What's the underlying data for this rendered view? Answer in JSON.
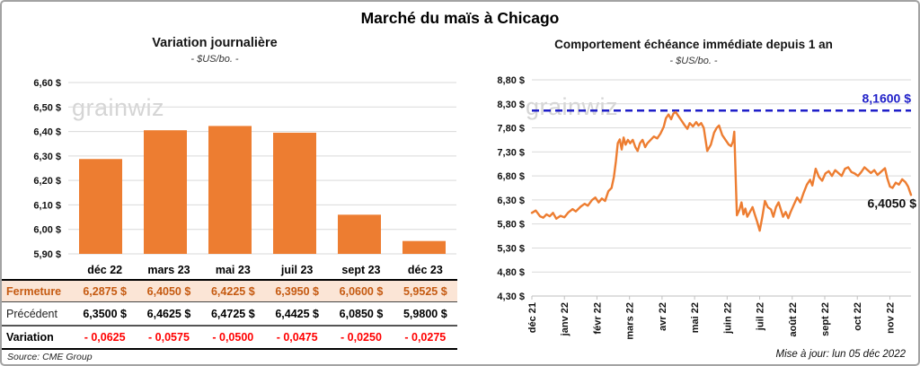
{
  "page": {
    "title": "Marché du maïs à Chicago",
    "watermark": "grainwiz",
    "source_note": "Source: CME Group",
    "update_note": "Mise à jour: lun 05 déc 2022"
  },
  "colors": {
    "bar_orange": "#ED7D31",
    "line_orange": "#ED7D31",
    "ref_blue": "#1F1FC8",
    "variation_red": "#FF0000",
    "fermeture_bg": "#FBE5D6",
    "fermeture_text": "#C55A11",
    "grid": "#D9D9D9",
    "axis": "#BFBFBF"
  },
  "chart_data": [
    {
      "type": "bar",
      "title": "Variation  journalière",
      "subtitle": "- $US/bo. -",
      "categories": [
        "déc 22",
        "mars 23",
        "mai 23",
        "juil 23",
        "sept 23",
        "déc 23"
      ],
      "values": [
        6.2875,
        6.405,
        6.4225,
        6.395,
        6.06,
        5.9525
      ],
      "ylim": [
        5.9,
        6.6
      ],
      "ytick_step": 0.1,
      "ytick_labels": [
        "6,60 $",
        "6,50 $",
        "6,40 $",
        "6,30 $",
        "6,20 $",
        "6,10 $",
        "6,00 $",
        "5,90 $"
      ],
      "bar_color": "#ED7D31",
      "grid": true,
      "legend": "none"
    },
    {
      "type": "line",
      "title": "Comportement  échéance immédiate depuis 1 an",
      "subtitle": "- $US/bo. -",
      "x_tick_labels": [
        "déc 21",
        "janv 22",
        "févr 22",
        "mars 22",
        "avr 22",
        "mai 22",
        "juin 22",
        "juil 22",
        "août 22",
        "sept 22",
        "oct 22",
        "nov 22"
      ],
      "ylim": [
        4.3,
        8.8
      ],
      "ytick_step": 0.5,
      "ytick_labels": [
        "8,80 $",
        "8,30 $",
        "7,80 $",
        "7,30 $",
        "6,80 $",
        "6,30 $",
        "5,80 $",
        "5,30 $",
        "4,80 $",
        "4,30 $"
      ],
      "grid": true,
      "ref_line": {
        "value": 8.16,
        "label": "8,1600 $",
        "color": "#1F1FC8",
        "style": "dashed"
      },
      "end_label": {
        "value": 6.405,
        "label": "6,4050 $",
        "color": "#111111"
      },
      "series": [
        {
          "name": "échéance immédiate",
          "color": "#ED7D31",
          "points": [
            [
              0,
              6.03
            ],
            [
              0.12,
              6.08
            ],
            [
              0.25,
              5.96
            ],
            [
              0.35,
              5.93
            ],
            [
              0.45,
              6.0
            ],
            [
              0.55,
              5.96
            ],
            [
              0.65,
              6.03
            ],
            [
              0.75,
              5.91
            ],
            [
              0.88,
              5.97
            ],
            [
              1.0,
              5.94
            ],
            [
              1.12,
              6.04
            ],
            [
              1.25,
              6.11
            ],
            [
              1.35,
              6.06
            ],
            [
              1.5,
              6.16
            ],
            [
              1.62,
              6.22
            ],
            [
              1.72,
              6.18
            ],
            [
              1.85,
              6.3
            ],
            [
              1.95,
              6.35
            ],
            [
              2.05,
              6.25
            ],
            [
              2.15,
              6.33
            ],
            [
              2.25,
              6.28
            ],
            [
              2.35,
              6.48
            ],
            [
              2.45,
              6.55
            ],
            [
              2.52,
              6.78
            ],
            [
              2.58,
              7.1
            ],
            [
              2.64,
              7.48
            ],
            [
              2.7,
              7.56
            ],
            [
              2.76,
              7.35
            ],
            [
              2.82,
              7.6
            ],
            [
              2.88,
              7.45
            ],
            [
              2.95,
              7.55
            ],
            [
              3.02,
              7.48
            ],
            [
              3.1,
              7.55
            ],
            [
              3.18,
              7.4
            ],
            [
              3.25,
              7.32
            ],
            [
              3.32,
              7.48
            ],
            [
              3.4,
              7.55
            ],
            [
              3.48,
              7.4
            ],
            [
              3.55,
              7.48
            ],
            [
              3.65,
              7.55
            ],
            [
              3.75,
              7.62
            ],
            [
              3.85,
              7.58
            ],
            [
              3.95,
              7.68
            ],
            [
              4.05,
              7.82
            ],
            [
              4.12,
              8.0
            ],
            [
              4.2,
              8.08
            ],
            [
              4.28,
              7.98
            ],
            [
              4.35,
              8.1
            ],
            [
              4.42,
              8.13
            ],
            [
              4.5,
              8.05
            ],
            [
              4.6,
              7.95
            ],
            [
              4.7,
              7.85
            ],
            [
              4.78,
              7.78
            ],
            [
              4.85,
              7.9
            ],
            [
              4.95,
              7.83
            ],
            [
              5.05,
              7.92
            ],
            [
              5.12,
              7.85
            ],
            [
              5.2,
              7.9
            ],
            [
              5.28,
              7.8
            ],
            [
              5.39,
              7.32
            ],
            [
              5.5,
              7.45
            ],
            [
              5.6,
              7.7
            ],
            [
              5.68,
              7.8
            ],
            [
              5.75,
              7.85
            ],
            [
              5.85,
              7.65
            ],
            [
              5.95,
              7.55
            ],
            [
              6.05,
              7.45
            ],
            [
              6.12,
              7.42
            ],
            [
              6.18,
              7.52
            ],
            [
              6.22,
              7.72
            ],
            [
              6.26,
              6.8
            ],
            [
              6.3,
              5.98
            ],
            [
              6.38,
              6.1
            ],
            [
              6.44,
              6.25
            ],
            [
              6.5,
              6.0
            ],
            [
              6.56,
              6.12
            ],
            [
              6.62,
              5.95
            ],
            [
              6.7,
              6.05
            ],
            [
              6.78,
              6.15
            ],
            [
              6.85,
              6.0
            ],
            [
              6.92,
              5.85
            ],
            [
              7.0,
              5.66
            ],
            [
              7.08,
              5.95
            ],
            [
              7.16,
              6.28
            ],
            [
              7.25,
              6.15
            ],
            [
              7.35,
              6.1
            ],
            [
              7.42,
              5.95
            ],
            [
              7.5,
              6.15
            ],
            [
              7.58,
              6.25
            ],
            [
              7.65,
              6.1
            ],
            [
              7.72,
              5.95
            ],
            [
              7.8,
              6.05
            ],
            [
              7.88,
              5.92
            ],
            [
              7.95,
              6.05
            ],
            [
              8.05,
              6.2
            ],
            [
              8.15,
              6.35
            ],
            [
              8.25,
              6.25
            ],
            [
              8.35,
              6.45
            ],
            [
              8.45,
              6.62
            ],
            [
              8.55,
              6.72
            ],
            [
              8.62,
              6.6
            ],
            [
              8.72,
              6.95
            ],
            [
              8.82,
              6.78
            ],
            [
              8.92,
              6.7
            ],
            [
              9.02,
              6.85
            ],
            [
              9.12,
              6.9
            ],
            [
              9.22,
              6.8
            ],
            [
              9.32,
              6.92
            ],
            [
              9.42,
              6.86
            ],
            [
              9.52,
              6.8
            ],
            [
              9.62,
              6.95
            ],
            [
              9.72,
              6.98
            ],
            [
              9.82,
              6.88
            ],
            [
              9.92,
              6.85
            ],
            [
              10.02,
              6.8
            ],
            [
              10.12,
              6.88
            ],
            [
              10.22,
              6.98
            ],
            [
              10.32,
              6.92
            ],
            [
              10.42,
              6.86
            ],
            [
              10.52,
              6.92
            ],
            [
              10.62,
              6.82
            ],
            [
              10.72,
              6.88
            ],
            [
              10.85,
              6.96
            ],
            [
              10.92,
              6.75
            ],
            [
              11.0,
              6.58
            ],
            [
              11.08,
              6.55
            ],
            [
              11.18,
              6.66
            ],
            [
              11.28,
              6.62
            ],
            [
              11.38,
              6.73
            ],
            [
              11.48,
              6.67
            ],
            [
              11.56,
              6.58
            ],
            [
              11.65,
              6.405
            ]
          ]
        }
      ]
    }
  ],
  "left_table": {
    "rows": [
      {
        "label": "Fermeture",
        "values": [
          "6,2875  $",
          "6,4050  $",
          "6,4225  $",
          "6,3950  $",
          "6,0600  $",
          "5,9525  $"
        ]
      },
      {
        "label": "Précédent",
        "values": [
          "6,3500  $",
          "6,4625  $",
          "6,4725  $",
          "6,4425  $",
          "6,0850  $",
          "5,9800  $"
        ]
      },
      {
        "label": "Variation",
        "values": [
          "- 0,0625",
          "- 0,0575",
          "- 0,0500",
          "- 0,0475",
          "- 0,0250",
          "- 0,0275"
        ]
      }
    ]
  }
}
